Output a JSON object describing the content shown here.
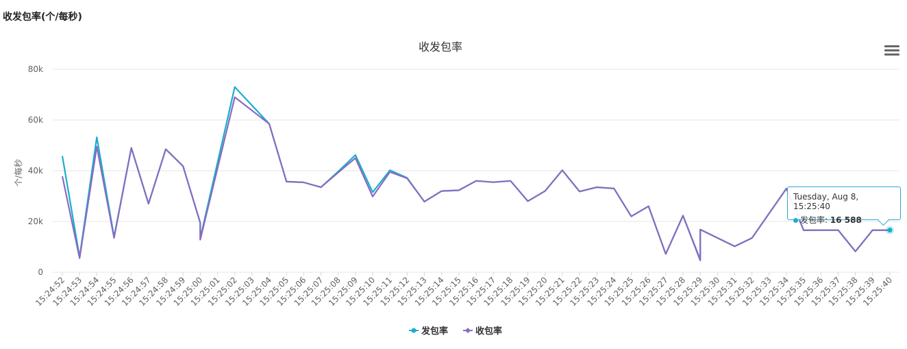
{
  "page_title": "收发包率(个/每秒)",
  "menu_icon": "hamburger-menu-icon",
  "tooltip": {
    "header": "Tuesday, Aug 8, 15:25:40",
    "series": "发包率",
    "value": "16 588",
    "color": "#1aadce"
  },
  "chart_data": {
    "type": "line",
    "title": "收发包率",
    "xlabel": "",
    "ylabel": "个/每秒",
    "ylim": [
      0,
      80000
    ],
    "yticks": [
      0,
      20000,
      40000,
      60000,
      80000
    ],
    "ytick_labels": [
      "0",
      "20k",
      "40k",
      "60k",
      "80k"
    ],
    "grid": true,
    "legend": "bottom-center",
    "categories": [
      "15:24:52",
      "15:24:53",
      "15:24:54",
      "15:24:55",
      "15:24:56",
      "15:24:57",
      "15:24:58",
      "15:24:59",
      "15:25:00",
      "15:25:01",
      "15:25:02",
      "15:25:03",
      "15:25:04",
      "15:25:05",
      "15:25:06",
      "15:25:07",
      "15:25:08",
      "15:25:09",
      "15:25:10",
      "15:25:11",
      "15:25:12",
      "15:25:13",
      "15:25:14",
      "15:25:15",
      "15:25:16",
      "15:25:17",
      "15:25:18",
      "15:25:19",
      "15:25:20",
      "15:25:21",
      "15:25:22",
      "15:25:23",
      "15:25:24",
      "15:25:25",
      "15:25:26",
      "15:25:27",
      "15:25:28",
      "15:25:29",
      "15:25:30",
      "15:25:31",
      "15:25:32",
      "15:25:33",
      "15:25:34",
      "15:25:35",
      "15:25:36",
      "15:25:37",
      "15:25:38",
      "15:25:39",
      "15:25:40"
    ],
    "series": [
      {
        "name": "发包率",
        "color": "#1aadce",
        "points": [
          [
            0,
            45800
          ],
          [
            1,
            6000
          ],
          [
            2,
            53200
          ],
          [
            3,
            14000
          ],
          [
            4,
            49000
          ],
          [
            5,
            27000
          ],
          [
            6,
            48500
          ],
          [
            7,
            41800
          ],
          [
            8,
            19500
          ],
          [
            8,
            13300
          ],
          [
            10,
            73000
          ],
          [
            12,
            58500
          ],
          [
            13,
            35700
          ],
          [
            14,
            35400
          ],
          [
            15,
            33500
          ],
          [
            16,
            39700
          ],
          [
            17,
            46200
          ],
          [
            18,
            31500
          ],
          [
            19,
            40200
          ],
          [
            20,
            37200
          ],
          [
            21,
            27800
          ],
          [
            22,
            32000
          ],
          [
            23,
            32300
          ],
          [
            24,
            36000
          ],
          [
            25,
            35500
          ],
          [
            26,
            36000
          ],
          [
            27,
            28000
          ],
          [
            28,
            32000
          ],
          [
            29,
            40200
          ],
          [
            30,
            31800
          ],
          [
            31,
            33500
          ],
          [
            32,
            33000
          ],
          [
            33,
            22000
          ],
          [
            34,
            26000
          ],
          [
            35,
            7200
          ],
          [
            36,
            22300
          ],
          [
            37,
            5000
          ],
          [
            37,
            16800
          ],
          [
            39,
            10200
          ],
          [
            40,
            13500
          ],
          [
            42,
            33000
          ],
          [
            43,
            16500
          ],
          [
            44,
            16600
          ],
          [
            45,
            16600
          ],
          [
            46,
            8200
          ],
          [
            47,
            16600
          ],
          [
            48,
            16588
          ]
        ]
      },
      {
        "name": "收包率",
        "color": "#8a6bbf",
        "points": [
          [
            0,
            37800
          ],
          [
            1,
            5500
          ],
          [
            2,
            49500
          ],
          [
            3,
            13500
          ],
          [
            4,
            49000
          ],
          [
            5,
            27000
          ],
          [
            6,
            48500
          ],
          [
            7,
            41800
          ],
          [
            8,
            19500
          ],
          [
            8,
            12800
          ],
          [
            10,
            69000
          ],
          [
            12,
            58500
          ],
          [
            13,
            35700
          ],
          [
            14,
            35400
          ],
          [
            15,
            33500
          ],
          [
            16,
            39300
          ],
          [
            17,
            45000
          ],
          [
            18,
            29800
          ],
          [
            19,
            39500
          ],
          [
            20,
            37000
          ],
          [
            21,
            27800
          ],
          [
            22,
            32000
          ],
          [
            23,
            32300
          ],
          [
            24,
            36000
          ],
          [
            25,
            35500
          ],
          [
            26,
            36000
          ],
          [
            27,
            28000
          ],
          [
            28,
            32000
          ],
          [
            29,
            40200
          ],
          [
            30,
            31800
          ],
          [
            31,
            33500
          ],
          [
            32,
            33000
          ],
          [
            33,
            22000
          ],
          [
            34,
            26000
          ],
          [
            35,
            7200
          ],
          [
            36,
            22300
          ],
          [
            37,
            4600
          ],
          [
            37,
            16800
          ],
          [
            39,
            10200
          ],
          [
            40,
            13500
          ],
          [
            42,
            33000
          ],
          [
            43,
            16500
          ],
          [
            44,
            16600
          ],
          [
            45,
            16600
          ],
          [
            46,
            8200
          ],
          [
            47,
            16600
          ],
          [
            48,
            16500
          ]
        ]
      }
    ]
  }
}
